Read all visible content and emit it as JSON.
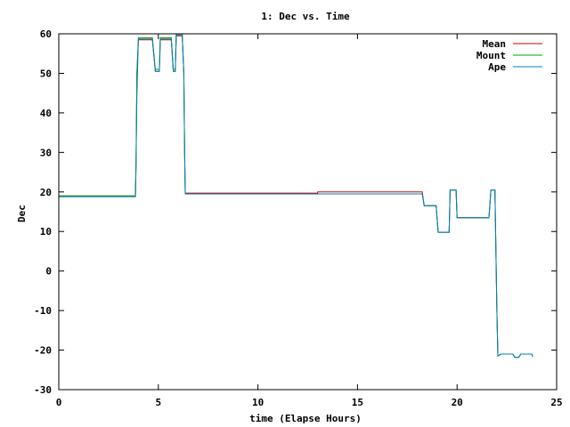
{
  "chart_data": {
    "type": "line",
    "title": "1: Dec vs. Time",
    "xlabel": "time (Elapse Hours)",
    "ylabel": "Dec",
    "xlim": [
      0,
      25
    ],
    "ylim": [
      -30,
      60
    ],
    "xticks": [
      0,
      5,
      10,
      15,
      20,
      25
    ],
    "yticks": [
      -30,
      -20,
      -10,
      0,
      10,
      20,
      30,
      40,
      50,
      60
    ],
    "grid": false,
    "legend_position": "top-right",
    "series": [
      {
        "name": "Mean",
        "color": "#cc0000",
        "points": [
          [
            0,
            19
          ],
          [
            3.85,
            19
          ],
          [
            3.88,
            28
          ],
          [
            3.92,
            50
          ],
          [
            4.0,
            58.5
          ],
          [
            4.7,
            58.5
          ],
          [
            4.85,
            50.5
          ],
          [
            5.05,
            50.5
          ],
          [
            5.1,
            58.5
          ],
          [
            5.65,
            58.5
          ],
          [
            5.75,
            50.5
          ],
          [
            5.85,
            50.5
          ],
          [
            5.9,
            59.5
          ],
          [
            6.2,
            59.5
          ],
          [
            6.28,
            50
          ],
          [
            6.32,
            30
          ],
          [
            6.35,
            19.7
          ],
          [
            13.0,
            19.7
          ],
          [
            13.0,
            20.0
          ],
          [
            18.25,
            20.0
          ],
          [
            18.35,
            16.5
          ],
          [
            18.95,
            16.5
          ],
          [
            19.05,
            9.8
          ],
          [
            19.6,
            9.8
          ],
          [
            19.65,
            20.5
          ],
          [
            19.95,
            20.5
          ],
          [
            20.0,
            13.5
          ],
          [
            21.6,
            13.5
          ],
          [
            21.7,
            20.5
          ],
          [
            21.9,
            20.5
          ],
          [
            22.0,
            -10
          ],
          [
            22.05,
            -21.5
          ],
          [
            22.2,
            -21
          ],
          [
            22.8,
            -21
          ],
          [
            22.9,
            -21.8
          ],
          [
            23.1,
            -21.8
          ],
          [
            23.2,
            -21
          ],
          [
            23.75,
            -21
          ],
          [
            23.8,
            -21.7
          ]
        ]
      },
      {
        "name": "Mount",
        "color": "#00a000",
        "points": [
          [
            0,
            19
          ],
          [
            3.85,
            19
          ],
          [
            3.88,
            28
          ],
          [
            3.92,
            44
          ],
          [
            4.0,
            59
          ],
          [
            4.7,
            59
          ],
          [
            4.85,
            51
          ],
          [
            5.05,
            51
          ],
          [
            5.1,
            59
          ],
          [
            5.65,
            59
          ],
          [
            5.75,
            51
          ],
          [
            5.85,
            51
          ],
          [
            5.9,
            60
          ],
          [
            6.2,
            60
          ],
          [
            6.28,
            50
          ],
          [
            6.32,
            30
          ],
          [
            6.35,
            19.5
          ],
          [
            18.25,
            19.5
          ],
          [
            18.35,
            16.5
          ],
          [
            18.95,
            16.5
          ],
          [
            19.05,
            9.8
          ],
          [
            19.6,
            9.8
          ],
          [
            19.65,
            20.5
          ],
          [
            19.95,
            20.5
          ],
          [
            20.0,
            13.5
          ],
          [
            21.6,
            13.5
          ],
          [
            21.7,
            20.5
          ],
          [
            21.9,
            20.5
          ],
          [
            22.0,
            -10
          ],
          [
            22.05,
            -21.5
          ],
          [
            22.2,
            -21
          ],
          [
            22.8,
            -21
          ],
          [
            22.9,
            -21.8
          ],
          [
            23.1,
            -21.8
          ],
          [
            23.2,
            -21
          ],
          [
            23.75,
            -21
          ],
          [
            23.8,
            -21.7
          ]
        ]
      },
      {
        "name": "Ape",
        "color": "#0080c0",
        "points": [
          [
            0,
            18.8
          ],
          [
            3.85,
            18.8
          ],
          [
            3.88,
            28
          ],
          [
            3.92,
            50
          ],
          [
            4.0,
            58.7
          ],
          [
            4.7,
            58.7
          ],
          [
            4.85,
            50.5
          ],
          [
            5.05,
            50.5
          ],
          [
            5.1,
            58.7
          ],
          [
            5.65,
            58.7
          ],
          [
            5.75,
            50.5
          ],
          [
            5.85,
            50.5
          ],
          [
            5.9,
            59.7
          ],
          [
            6.2,
            59.7
          ],
          [
            6.28,
            50
          ],
          [
            6.32,
            30
          ],
          [
            6.35,
            19.5
          ],
          [
            18.25,
            19.5
          ],
          [
            18.35,
            16.5
          ],
          [
            18.95,
            16.5
          ],
          [
            19.05,
            9.8
          ],
          [
            19.6,
            9.8
          ],
          [
            19.65,
            20.5
          ],
          [
            19.95,
            20.5
          ],
          [
            20.0,
            13.5
          ],
          [
            21.6,
            13.5
          ],
          [
            21.7,
            20.5
          ],
          [
            21.9,
            20.5
          ],
          [
            22.0,
            -10
          ],
          [
            22.05,
            -21.5
          ],
          [
            22.2,
            -21
          ],
          [
            22.8,
            -21
          ],
          [
            22.9,
            -21.8
          ],
          [
            23.1,
            -21.8
          ],
          [
            23.2,
            -21
          ],
          [
            23.75,
            -21
          ],
          [
            23.8,
            -21.7
          ]
        ]
      }
    ]
  }
}
